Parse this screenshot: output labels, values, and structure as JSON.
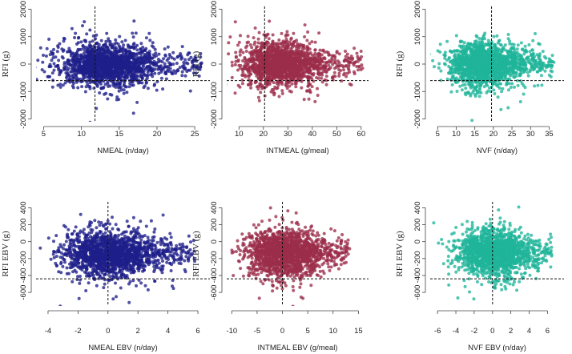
{
  "chart_data": [
    {
      "type": "scatter",
      "id": "nmeal",
      "color": "#1f1f8a",
      "xlabel": "NMEAL (n/day)",
      "ylabel": "RFI (g)",
      "xlim": [
        4,
        27
      ],
      "ylim": [
        -2100,
        2100
      ],
      "xticks": [
        5,
        10,
        15,
        20,
        25
      ],
      "yticks": [
        -2000,
        -1000,
        0,
        1000,
        2000
      ],
      "vline": 11.8,
      "hline": -600,
      "cloud": {
        "cx": 13,
        "cy": 0,
        "x_left": 6,
        "x_right": 21,
        "y_half": 800,
        "tail_right": 26
      }
    },
    {
      "type": "scatter",
      "id": "intmeal",
      "color": "#9b2d4a",
      "xlabel": "INTMEAL (g/meal)",
      "ylabel": "RFI (g)",
      "xlim": [
        5,
        63
      ],
      "ylim": [
        -2100,
        2100
      ],
      "xticks": [
        10,
        20,
        30,
        40,
        50,
        60
      ],
      "yticks": [
        -2000,
        -1000,
        0,
        1000,
        2000
      ],
      "vline": 20.5,
      "hline": -600,
      "cloud": {
        "cx": 26,
        "cy": 0,
        "x_left": 9,
        "x_right": 48,
        "y_half": 800,
        "tail_right": 61
      }
    },
    {
      "type": "scatter",
      "id": "nvf",
      "color": "#1fb59a",
      "xlabel": "NVF (n/day)",
      "ylabel": "RFI (g)",
      "xlim": [
        3,
        39
      ],
      "ylim": [
        -2100,
        2100
      ],
      "xticks": [
        5,
        10,
        15,
        20,
        25,
        30,
        35
      ],
      "yticks": [
        -2000,
        -1000,
        0,
        1000,
        2000
      ],
      "vline": 19.5,
      "hline": -600,
      "cloud": {
        "cx": 17,
        "cy": 0,
        "x_left": 7,
        "x_right": 31,
        "y_half": 800,
        "tail_right": 36
      }
    },
    {
      "type": "scatter",
      "id": "nmeal-ebv",
      "color": "#1f1f8a",
      "xlabel": "NMEAL EBV (n/day)",
      "ylabel": "RFI EBV (g)",
      "xlim": [
        -4.8,
        6.8
      ],
      "ylim": [
        -760,
        470
      ],
      "xticks": [
        -4,
        -2,
        0,
        2,
        4,
        6
      ],
      "yticks": [
        -600,
        -400,
        -200,
        0,
        200,
        400
      ],
      "vline": 0,
      "hline": -440,
      "cloud": {
        "cx": 0,
        "cy": -140,
        "x_left": -3.6,
        "x_right": 3.8,
        "y_half": 270,
        "tail_right": 5.8
      }
    },
    {
      "type": "scatter",
      "id": "intmeal-ebv",
      "color": "#9b2d4a",
      "xlabel": "INTMEAL EBV (g/meal)",
      "ylabel": "RFI EBV (g)",
      "xlim": [
        -11,
        17
      ],
      "ylim": [
        -760,
        470
      ],
      "xticks": [
        -10,
        -5,
        0,
        5,
        10,
        15
      ],
      "yticks": [
        -600,
        -400,
        -200,
        0,
        200,
        400
      ],
      "vline": 0,
      "hline": -440,
      "cloud": {
        "cx": 0,
        "cy": -140,
        "x_left": -8,
        "x_right": 10,
        "y_half": 270,
        "tail_right": 13
      }
    },
    {
      "type": "scatter",
      "id": "nvf-ebv",
      "color": "#1fb59a",
      "xlabel": "NVF EBV (n/day)",
      "ylabel": "RFI EBV (g)",
      "xlim": [
        -6.8,
        7.8
      ],
      "ylim": [
        -760,
        470
      ],
      "xticks": [
        -6,
        -4,
        -2,
        0,
        2,
        4,
        6
      ],
      "yticks": [
        -600,
        -400,
        -200,
        0,
        200,
        400
      ],
      "vline": 0,
      "hline": -440,
      "cloud": {
        "cx": 0,
        "cy": -140,
        "x_left": -4.5,
        "x_right": 4.5,
        "y_half": 270,
        "tail_right": 6.5
      }
    }
  ]
}
